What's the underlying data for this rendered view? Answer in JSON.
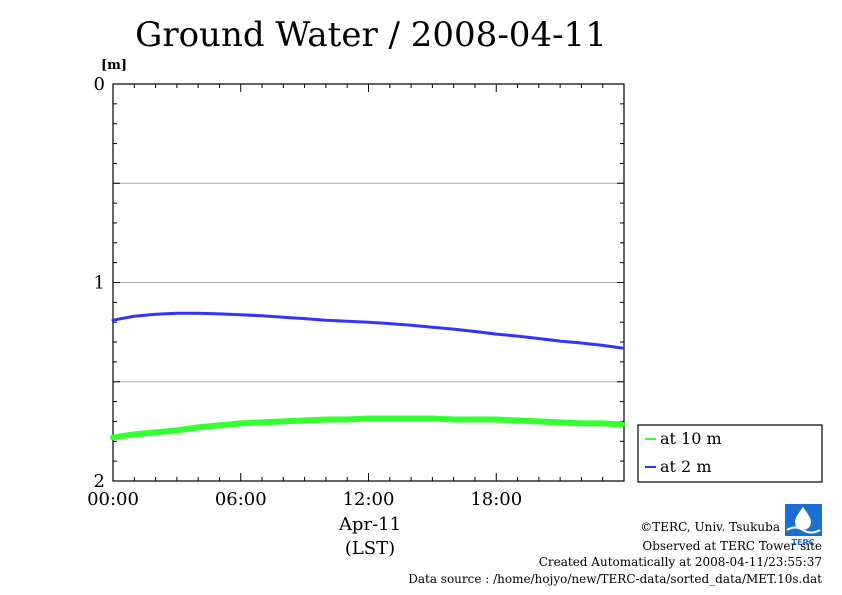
{
  "chart_data": {
    "type": "line",
    "title": "Ground Water / 2008-04-11",
    "ylabel_unit": "[m]",
    "ylim": [
      0,
      2
    ],
    "y_inverted": true,
    "y_ticks": [
      "0",
      "1",
      "2"
    ],
    "y_gridlines": [
      0.5,
      1,
      1.5
    ],
    "x_range_hours": [
      0,
      24
    ],
    "x_ticks": [
      {
        "hour": 0,
        "label": "00:00"
      },
      {
        "hour": 6,
        "label": "06:00"
      },
      {
        "hour": 12,
        "label": "12:00"
      },
      {
        "hour": 18,
        "label": "18:00"
      }
    ],
    "xlabel_date": "Apr-11",
    "xlabel_tz": "(LST)",
    "legend_position": "bottom-right",
    "series": [
      {
        "name": "at 10 m",
        "color": "#33ff33",
        "x": [
          0,
          1,
          2,
          3,
          4,
          5,
          6,
          7,
          8,
          9,
          10,
          11,
          12,
          13,
          14,
          15,
          16,
          17,
          18,
          19,
          20,
          21,
          22,
          23,
          23.9
        ],
        "y": [
          1.78,
          1.765,
          1.755,
          1.745,
          1.73,
          1.72,
          1.71,
          1.705,
          1.7,
          1.695,
          1.69,
          1.69,
          1.685,
          1.685,
          1.685,
          1.685,
          1.69,
          1.69,
          1.69,
          1.695,
          1.7,
          1.705,
          1.71,
          1.71,
          1.715
        ]
      },
      {
        "name": "at 2 m",
        "color": "#3333ff",
        "x": [
          0,
          1,
          2,
          3,
          4,
          5,
          6,
          7,
          8,
          9,
          10,
          11,
          12,
          13,
          14,
          15,
          16,
          17,
          18,
          19,
          20,
          21,
          22,
          23,
          23.9
        ],
        "y": [
          1.19,
          1.17,
          1.16,
          1.155,
          1.155,
          1.158,
          1.162,
          1.168,
          1.175,
          1.182,
          1.19,
          1.195,
          1.2,
          1.207,
          1.215,
          1.225,
          1.235,
          1.247,
          1.26,
          1.27,
          1.282,
          1.295,
          1.305,
          1.317,
          1.33
        ]
      }
    ]
  },
  "credits": {
    "copyright": "©TERC, Univ. Tsukuba",
    "observed": "Observed at TERC Tower site",
    "created": "Created Automatically at 2008-04-11/23:55:37",
    "source": "Data source : /home/hojyo/new/TERC-data/sorted_data/MET.10s.dat"
  },
  "logo": {
    "text": "TERC",
    "color": "#1a6fd0"
  }
}
